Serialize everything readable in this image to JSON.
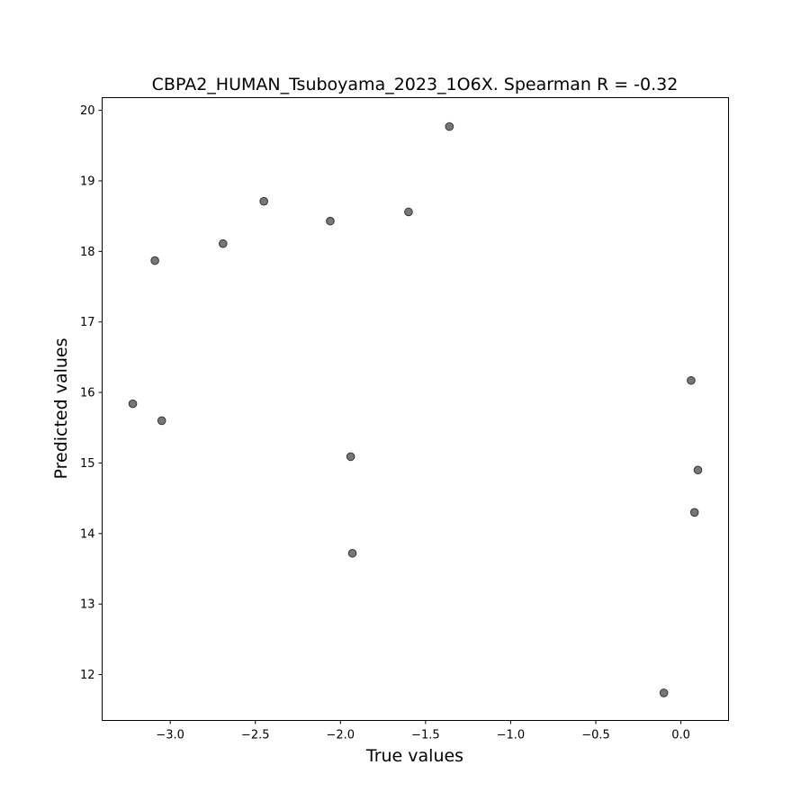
{
  "chart_data": {
    "type": "scatter",
    "title": "CBPA2_HUMAN_Tsuboyama_2023_1O6X. Spearman R = -0.32",
    "xlabel": "True values",
    "ylabel": "Predicted values",
    "xlim": [
      -3.4,
      0.28
    ],
    "ylim": [
      11.35,
      20.18
    ],
    "xticks": [
      -3.0,
      -2.5,
      -2.0,
      -1.5,
      -1.0,
      -0.5,
      0.0
    ],
    "xtick_labels": [
      "−3.0",
      "−2.5",
      "−2.0",
      "−1.5",
      "−1.0",
      "−0.5",
      "0.0"
    ],
    "yticks": [
      12,
      13,
      14,
      15,
      16,
      17,
      18,
      19,
      20
    ],
    "ytick_labels": [
      "12",
      "13",
      "14",
      "15",
      "16",
      "17",
      "18",
      "19",
      "20"
    ],
    "grid": false,
    "point_color": "#555555",
    "points": [
      {
        "x": -1.36,
        "y": 19.77
      },
      {
        "x": -2.45,
        "y": 18.71
      },
      {
        "x": -1.6,
        "y": 18.56
      },
      {
        "x": -2.06,
        "y": 18.43
      },
      {
        "x": -2.69,
        "y": 18.11
      },
      {
        "x": -3.09,
        "y": 17.87
      },
      {
        "x": 0.06,
        "y": 16.17
      },
      {
        "x": -3.22,
        "y": 15.84
      },
      {
        "x": -3.05,
        "y": 15.6
      },
      {
        "x": -1.94,
        "y": 15.09
      },
      {
        "x": 0.1,
        "y": 14.9
      },
      {
        "x": 0.08,
        "y": 14.3
      },
      {
        "x": -1.93,
        "y": 13.72
      },
      {
        "x": -0.1,
        "y": 11.74
      }
    ]
  }
}
